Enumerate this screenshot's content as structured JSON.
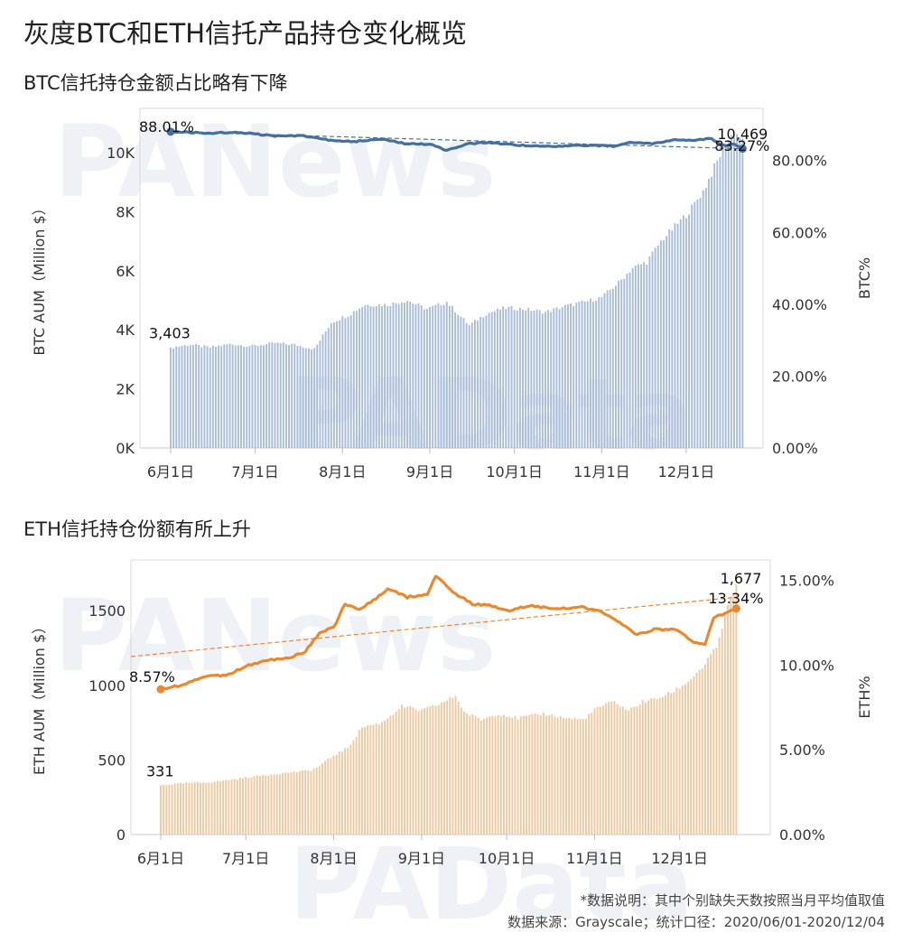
{
  "title": "灰度BTC和ETH信托产品持仓变化概览",
  "footer": {
    "note": "*数据说明：其中个别缺失天数按照当月平均值取值",
    "source": "数据来源：Grayscale；统计口径：2020/06/01-2020/12/04"
  },
  "watermarks": [
    "PANews",
    "PAData",
    "PANews",
    "PAData"
  ],
  "colors": {
    "btc_bar": "#a9bcd8",
    "btc_line": "#4470a0",
    "eth_bar": "#efc8a0",
    "eth_line": "#e8892d",
    "grid": "#d8d8d8"
  },
  "chart_data": [
    {
      "type": "bar",
      "title": "BTC信托持仓金额占比略有下降",
      "ylabel": "BTC AUM（Million $）",
      "y2label": "BTC%",
      "x_ticks": [
        "6月1日",
        "7月1日",
        "8月1日",
        "9月1日",
        "10月1日",
        "11月1日",
        "12月1日"
      ],
      "ylim": [
        0,
        11500
      ],
      "y_ticks": [
        0,
        2000,
        4000,
        6000,
        8000,
        10000
      ],
      "y_tick_labels": [
        "0K",
        "2K",
        "4K",
        "6K",
        "8K",
        "10K"
      ],
      "y2lim": [
        0,
        94.5
      ],
      "y2_ticks": [
        0,
        20,
        40,
        60,
        80
      ],
      "y2_tick_labels": [
        "0.00%",
        "20.00%",
        "40.00%",
        "60.00%",
        "80.00%"
      ],
      "aum_anchors": [
        [
          1,
          3403
        ],
        [
          8,
          3500
        ],
        [
          15,
          3400
        ],
        [
          22,
          3520
        ],
        [
          30,
          3450
        ],
        [
          38,
          3550
        ],
        [
          45,
          3500
        ],
        [
          52,
          3350
        ],
        [
          58,
          4250
        ],
        [
          64,
          4500
        ],
        [
          70,
          4850
        ],
        [
          78,
          4850
        ],
        [
          85,
          5000
        ],
        [
          92,
          4700
        ],
        [
          99,
          4950
        ],
        [
          107,
          4150
        ],
        [
          113,
          4550
        ],
        [
          120,
          4750
        ],
        [
          127,
          4700
        ],
        [
          134,
          4600
        ],
        [
          141,
          4800
        ],
        [
          148,
          4950
        ],
        [
          154,
          5100
        ],
        [
          160,
          5600
        ],
        [
          165,
          6100
        ],
        [
          170,
          6300
        ],
        [
          175,
          7000
        ],
        [
          180,
          7500
        ],
        [
          185,
          8000
        ],
        [
          190,
          8700
        ],
        [
          195,
          9700
        ],
        [
          198,
          10300
        ],
        [
          201,
          10700
        ],
        [
          204,
          10469
        ]
      ],
      "pct_anchors": [
        [
          1,
          88.01
        ],
        [
          15,
          87.6
        ],
        [
          25,
          87.9
        ],
        [
          38,
          86.8
        ],
        [
          48,
          86.9
        ],
        [
          58,
          85.6
        ],
        [
          66,
          85.3
        ],
        [
          76,
          85.9
        ],
        [
          84,
          84.7
        ],
        [
          94,
          84.5
        ],
        [
          99,
          82.7
        ],
        [
          106,
          84.6
        ],
        [
          113,
          85.0
        ],
        [
          121,
          84.5
        ],
        [
          130,
          84.0
        ],
        [
          140,
          84.0
        ],
        [
          150,
          84.2
        ],
        [
          158,
          84.0
        ],
        [
          165,
          85.1
        ],
        [
          172,
          84.6
        ],
        [
          180,
          85.8
        ],
        [
          187,
          85.6
        ],
        [
          193,
          86.1
        ],
        [
          196,
          84.5
        ],
        [
          198,
          84.0
        ],
        [
          201,
          84.6
        ],
        [
          204,
          83.27
        ]
      ],
      "trend_start": 88.01,
      "trend_end": 83.27,
      "labels": {
        "first_aum": "3,403",
        "last_aum": "10,469",
        "first_pct": "88.01%",
        "last_pct": "83.27%"
      }
    },
    {
      "type": "bar",
      "title": "ETH信托持仓份额有所上升",
      "ylabel": "ETH AUM（Million $）",
      "y2label": "ETH%",
      "x_ticks": [
        "6月1日",
        "7月1日",
        "8月1日",
        "9月1日",
        "10月1日",
        "11月1日",
        "12月1日"
      ],
      "ylim": [
        0,
        1840
      ],
      "y_ticks": [
        0,
        500,
        1000,
        1500
      ],
      "y_tick_labels": [
        "0",
        "500",
        "1000",
        "1500"
      ],
      "y2lim": [
        0,
        16.2
      ],
      "y2_ticks": [
        0,
        5,
        10,
        15
      ],
      "y2_tick_labels": [
        "0.00%",
        "5.00%",
        "10.00%",
        "15.00%"
      ],
      "aum_anchors": [
        [
          1,
          331
        ],
        [
          10,
          345
        ],
        [
          18,
          350
        ],
        [
          27,
          370
        ],
        [
          36,
          395
        ],
        [
          46,
          415
        ],
        [
          54,
          430
        ],
        [
          57,
          460
        ],
        [
          62,
          530
        ],
        [
          67,
          580
        ],
        [
          72,
          720
        ],
        [
          79,
          750
        ],
        [
          86,
          860
        ],
        [
          93,
          830
        ],
        [
          100,
          880
        ],
        [
          105,
          930
        ],
        [
          108,
          820
        ],
        [
          114,
          770
        ],
        [
          120,
          810
        ],
        [
          127,
          780
        ],
        [
          136,
          810
        ],
        [
          144,
          780
        ],
        [
          150,
          770
        ],
        [
          155,
          850
        ],
        [
          161,
          890
        ],
        [
          166,
          830
        ],
        [
          171,
          890
        ],
        [
          176,
          910
        ],
        [
          181,
          950
        ],
        [
          186,
          1010
        ],
        [
          192,
          1120
        ],
        [
          197,
          1250
        ],
        [
          201,
          1530
        ],
        [
          204,
          1677
        ]
      ],
      "pct_anchors": [
        [
          1,
          8.57
        ],
        [
          8,
          8.8
        ],
        [
          16,
          9.3
        ],
        [
          24,
          9.4
        ],
        [
          32,
          10.0
        ],
        [
          40,
          10.3
        ],
        [
          46,
          10.4
        ],
        [
          52,
          10.8
        ],
        [
          57,
          11.9
        ],
        [
          62,
          12.2
        ],
        [
          66,
          13.6
        ],
        [
          71,
          13.3
        ],
        [
          77,
          13.9
        ],
        [
          81,
          14.5
        ],
        [
          88,
          14.0
        ],
        [
          95,
          14.2
        ],
        [
          98,
          15.3
        ],
        [
          104,
          14.3
        ],
        [
          111,
          13.6
        ],
        [
          118,
          13.5
        ],
        [
          124,
          13.2
        ],
        [
          131,
          13.5
        ],
        [
          141,
          13.3
        ],
        [
          150,
          13.4
        ],
        [
          157,
          13.1
        ],
        [
          163,
          12.5
        ],
        [
          169,
          11.8
        ],
        [
          175,
          12.1
        ],
        [
          183,
          12.1
        ],
        [
          189,
          11.3
        ],
        [
          193,
          11.2
        ],
        [
          196,
          12.8
        ],
        [
          199,
          13.0
        ],
        [
          204,
          13.34
        ]
      ],
      "trend_start": 10.5,
      "trend_end": 14.0,
      "labels": {
        "first_aum": "331",
        "last_aum": "1,677",
        "first_pct": "8.57%",
        "last_pct": "13.34%"
      }
    }
  ]
}
